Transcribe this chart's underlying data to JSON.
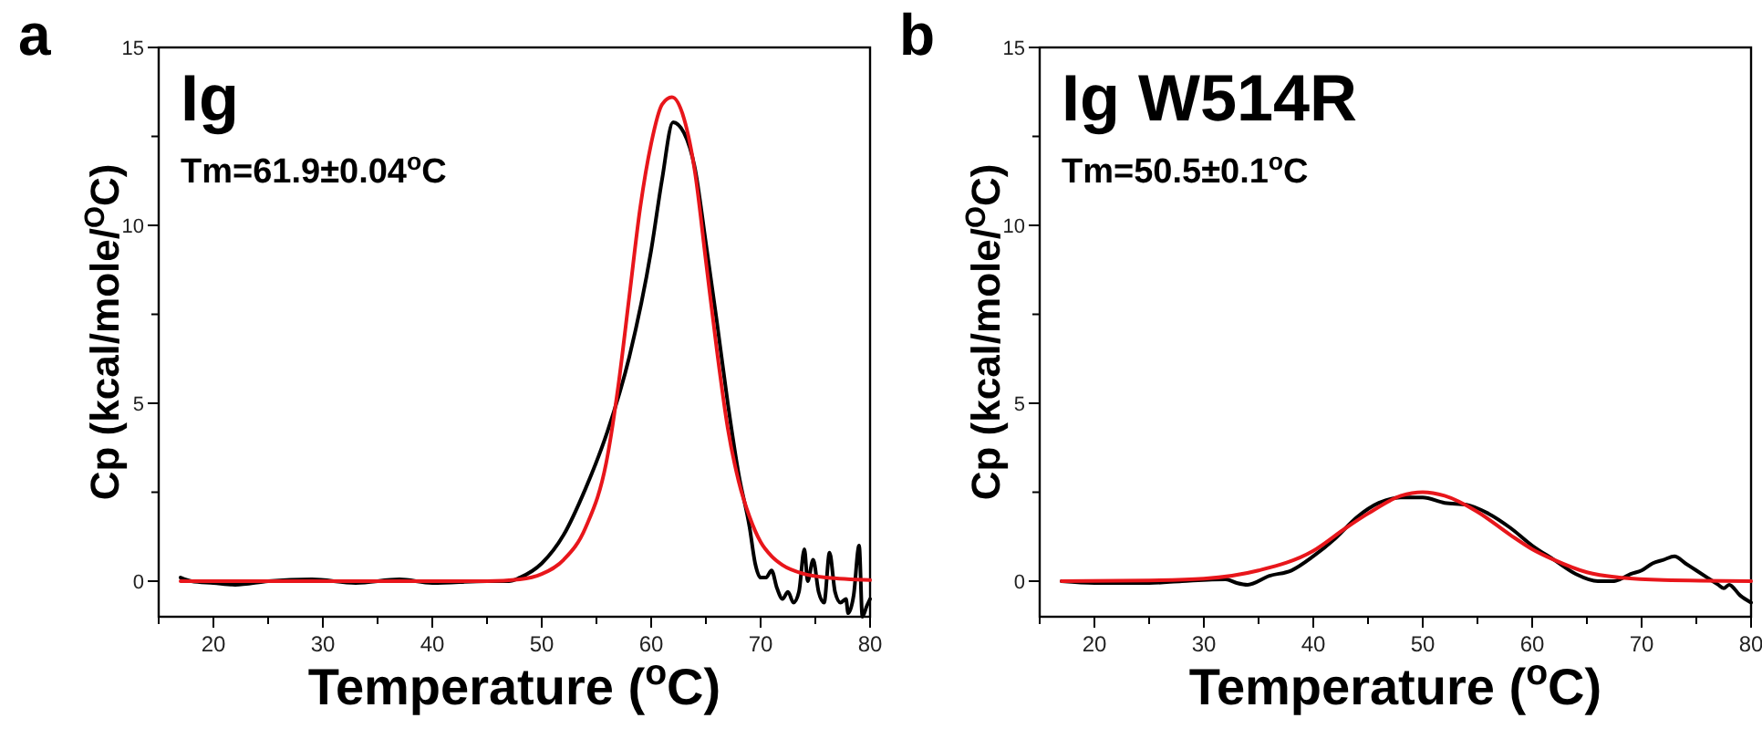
{
  "chart_data": [
    {
      "type": "line",
      "title": "Ig",
      "annotations": [
        "a",
        "Tm=61.9±0.04$^{o}$C"
      ],
      "xlabel": "Temperature ($^{o}$C)",
      "ylabel": "Cp (kcal/mole/$^{O}$C)",
      "xlim": [
        15,
        80
      ],
      "ylim": [
        -1,
        15
      ],
      "xticks": [
        {
          "value": 15,
          "label": null
        },
        20,
        {
          "value": 25,
          "label": null
        },
        30,
        {
          "value": 35,
          "label": null
        },
        40,
        {
          "value": 45,
          "label": null
        },
        50,
        {
          "value": 55,
          "label": null
        },
        60,
        {
          "value": 65,
          "label": null
        },
        70,
        {
          "value": 75,
          "label": null
        },
        80
      ],
      "yticks": [
        0,
        {
          "value": 2.5,
          "label": null
        },
        5,
        {
          "value": 7.5,
          "label": null
        },
        10,
        {
          "value": 12.5,
          "label": null
        },
        15
      ],
      "grid": false,
      "series": [
        {
          "color": "#000000",
          "x": [
            17,
            18,
            20,
            22,
            25,
            29,
            33,
            37,
            40,
            45,
            47,
            48,
            50,
            52,
            54,
            56,
            58,
            60,
            61,
            62,
            63,
            64,
            65,
            66,
            67,
            68,
            69,
            69.5,
            70,
            70.5,
            71,
            71.5,
            72,
            72.5,
            73,
            73.5,
            74,
            74.3,
            74.8,
            75.3,
            75.8,
            76.3,
            76.8,
            77.3,
            77.8,
            78,
            78.5,
            79,
            79.3,
            79.7,
            80
          ],
          "values": [
            0.1,
            0,
            -0.05,
            -0.1,
            0,
            0.05,
            -0.05,
            0.05,
            -0.05,
            0,
            0,
            0.1,
            0.5,
            1.3,
            2.6,
            4.2,
            6.3,
            9.3,
            11.3,
            12.9,
            12.6,
            11.6,
            9.5,
            7.3,
            5,
            3,
            1.5,
            0.5,
            0.1,
            0.1,
            0.3,
            -0.2,
            -0.5,
            -0.3,
            -0.6,
            -0.3,
            0.9,
            0,
            0.6,
            -0.3,
            -0.6,
            0.8,
            -0.3,
            -0.6,
            -0.5,
            -0.9,
            -0.4,
            1,
            -1,
            -0.7,
            -0.5
          ]
        },
        {
          "color": "#e8161b",
          "x": [
            17,
            45,
            48,
            50,
            52,
            54,
            56,
            57,
            58,
            59,
            60,
            61,
            61.9,
            63,
            64,
            65,
            66,
            67,
            68,
            69,
            70,
            71,
            72,
            74,
            76,
            80
          ],
          "values": [
            0,
            0,
            0.05,
            0.2,
            0.6,
            1.5,
            3.5,
            5.5,
            8,
            10.5,
            12.3,
            13.4,
            13.6,
            13,
            11.5,
            9,
            6.5,
            4.3,
            2.8,
            1.8,
            1.1,
            0.7,
            0.45,
            0.2,
            0.1,
            0.03
          ]
        }
      ]
    },
    {
      "type": "line",
      "title": "Ig W514R",
      "annotations": [
        "b",
        "Tm=50.5±0.1$^{o}$C"
      ],
      "xlabel": "Temperature ($^{o}$C)",
      "ylabel": "Cp (kcal/mole/$^{O}$C)",
      "xlim": [
        15,
        80
      ],
      "ylim": [
        -1,
        15
      ],
      "xticks": [
        {
          "value": 15,
          "label": null
        },
        20,
        {
          "value": 25,
          "label": null
        },
        30,
        {
          "value": 35,
          "label": null
        },
        40,
        {
          "value": 45,
          "label": null
        },
        50,
        {
          "value": 55,
          "label": null
        },
        60,
        {
          "value": 65,
          "label": null
        },
        70,
        {
          "value": 75,
          "label": null
        },
        80
      ],
      "yticks": [
        0,
        {
          "value": 2.5,
          "label": null
        },
        5,
        {
          "value": 7.5,
          "label": null
        },
        10,
        {
          "value": 12.5,
          "label": null
        },
        15
      ],
      "grid": false,
      "series": [
        {
          "color": "#000000",
          "x": [
            17,
            20,
            25,
            28,
            32,
            33,
            34,
            36,
            38,
            40,
            42,
            44,
            46,
            48,
            50,
            52,
            54,
            56,
            58,
            60,
            62,
            64,
            66,
            67.5,
            68,
            69,
            70,
            71,
            72,
            73,
            74,
            75,
            76,
            77,
            77.5,
            78,
            79,
            80
          ],
          "values": [
            0,
            -0.05,
            -0.05,
            0,
            0.05,
            -0.05,
            -0.1,
            0.15,
            0.3,
            0.7,
            1.2,
            1.8,
            2.2,
            2.35,
            2.35,
            2.2,
            2.15,
            1.9,
            1.5,
            1,
            0.6,
            0.2,
            0,
            0,
            0.05,
            0.2,
            0.3,
            0.5,
            0.6,
            0.7,
            0.5,
            0.3,
            0.1,
            -0.1,
            -0.2,
            -0.1,
            -0.4,
            -0.6
          ]
        },
        {
          "color": "#e8161b",
          "x": [
            17,
            25,
            30,
            35,
            40,
            43,
            45,
            48,
            50,
            52,
            55,
            58,
            60,
            62,
            65,
            68,
            72,
            80
          ],
          "values": [
            0,
            0.02,
            0.07,
            0.3,
            0.85,
            1.5,
            1.9,
            2.4,
            2.5,
            2.4,
            1.95,
            1.3,
            0.9,
            0.6,
            0.25,
            0.1,
            0.03,
            0
          ]
        }
      ]
    }
  ]
}
